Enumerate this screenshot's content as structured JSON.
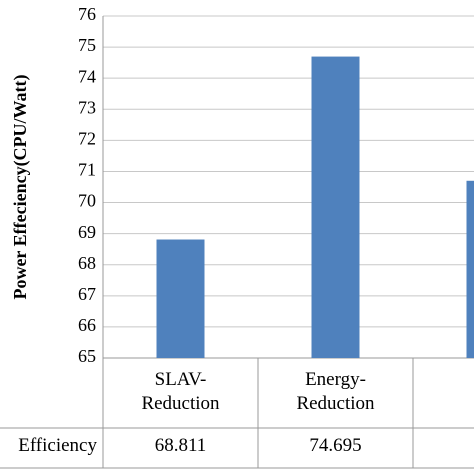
{
  "chart_data": {
    "type": "bar",
    "y_label": "Power Effeciency(CPU/Watt)",
    "categories": [
      "SLAV-\nReduction",
      "Energy-\nReduction",
      null
    ],
    "series": [
      {
        "name": "Efficiency",
        "color": "#4f81bd",
        "values": [
          68.811,
          74.695,
          70.7
        ]
      }
    ],
    "ylim": [
      65,
      76
    ],
    "yticks": [
      65,
      66,
      67,
      68,
      69,
      70,
      71,
      72,
      73,
      74,
      75,
      76
    ],
    "grid": true
  }
}
